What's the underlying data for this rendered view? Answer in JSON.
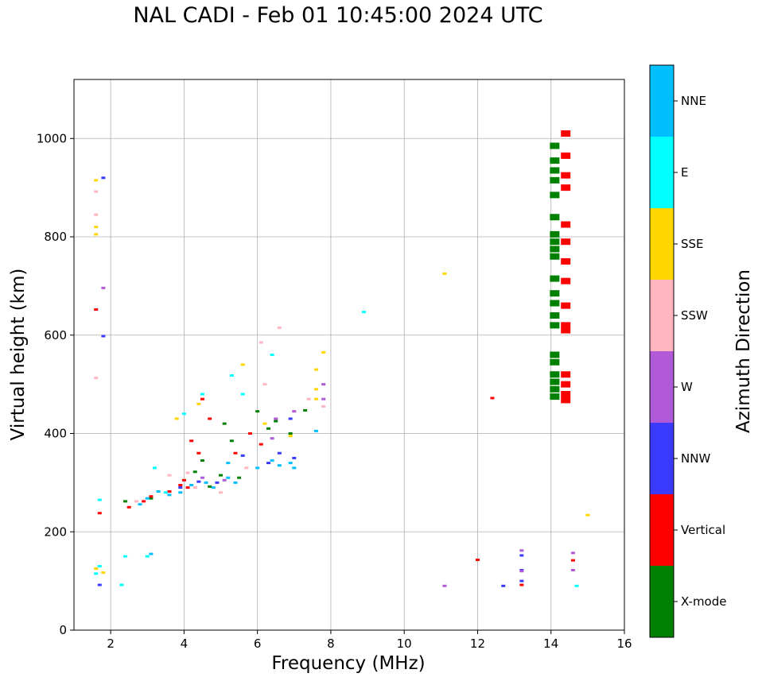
{
  "chart_data": {
    "type": "scatter",
    "title": "NAL CADI - Feb 01 10:45:00 2024 UTC",
    "xlabel": "Frequency (MHz)",
    "ylabel": "Virtual height (km)",
    "xlim": [
      1,
      16
    ],
    "ylim": [
      0,
      1120
    ],
    "xticks": [
      2,
      4,
      6,
      8,
      10,
      12,
      14,
      16
    ],
    "yticks": [
      0,
      200,
      400,
      600,
      800,
      1000
    ],
    "grid": true,
    "colorbar": {
      "label": "Azimuth Direction",
      "categories": [
        {
          "name": "X-mode",
          "color": "#008000"
        },
        {
          "name": "Vertical",
          "color": "#ff0000"
        },
        {
          "name": "NNW",
          "color": "#3a3aff"
        },
        {
          "name": "W",
          "color": "#b15ad8"
        },
        {
          "name": "SSW",
          "color": "#ffb6c1"
        },
        {
          "name": "SSE",
          "color": "#ffd700"
        },
        {
          "name": "E",
          "color": "#00ffff"
        },
        {
          "name": "NNE",
          "color": "#00bfff"
        }
      ]
    },
    "series": [
      {
        "name": "X-mode",
        "points": [
          [
            2.4,
            262
          ],
          [
            3.1,
            268
          ],
          [
            4.3,
            322
          ],
          [
            4.5,
            345
          ],
          [
            4.7,
            292
          ],
          [
            5.0,
            315
          ],
          [
            5.1,
            420
          ],
          [
            5.3,
            385
          ],
          [
            5.5,
            310
          ],
          [
            6.0,
            445
          ],
          [
            6.3,
            410
          ],
          [
            6.5,
            425
          ],
          [
            6.9,
            400
          ],
          [
            7.3,
            447
          ],
          [
            14.1,
            475
          ],
          [
            14.1,
            490
          ],
          [
            14.1,
            505
          ],
          [
            14.1,
            520
          ],
          [
            14.1,
            545
          ],
          [
            14.1,
            560
          ],
          [
            14.1,
            620
          ],
          [
            14.1,
            640
          ],
          [
            14.1,
            665
          ],
          [
            14.1,
            685
          ],
          [
            14.1,
            715
          ],
          [
            14.1,
            760
          ],
          [
            14.1,
            775
          ],
          [
            14.1,
            790
          ],
          [
            14.1,
            805
          ],
          [
            14.1,
            840
          ],
          [
            14.1,
            885
          ],
          [
            14.1,
            915
          ],
          [
            14.1,
            935
          ],
          [
            14.1,
            955
          ],
          [
            14.1,
            985
          ]
        ]
      },
      {
        "name": "Vertical",
        "points": [
          [
            1.7,
            238
          ],
          [
            1.6,
            652
          ],
          [
            2.5,
            250
          ],
          [
            2.9,
            262
          ],
          [
            3.1,
            272
          ],
          [
            3.6,
            282
          ],
          [
            3.9,
            295
          ],
          [
            4.0,
            305
          ],
          [
            4.1,
            290
          ],
          [
            4.2,
            385
          ],
          [
            4.4,
            360
          ],
          [
            4.7,
            430
          ],
          [
            4.5,
            470
          ],
          [
            5.4,
            360
          ],
          [
            5.8,
            400
          ],
          [
            6.1,
            378
          ],
          [
            12.4,
            472
          ],
          [
            12.0,
            143
          ],
          [
            13.2,
            92
          ],
          [
            14.4,
            468
          ],
          [
            14.4,
            480
          ],
          [
            14.4,
            500
          ],
          [
            14.4,
            520
          ],
          [
            14.4,
            610
          ],
          [
            14.4,
            620
          ],
          [
            14.4,
            660
          ],
          [
            14.4,
            710
          ],
          [
            14.4,
            750
          ],
          [
            14.4,
            790
          ],
          [
            14.4,
            825
          ],
          [
            14.4,
            900
          ],
          [
            14.4,
            925
          ],
          [
            14.4,
            965
          ],
          [
            14.4,
            1010
          ],
          [
            14.6,
            142
          ]
        ]
      },
      {
        "name": "NNW",
        "points": [
          [
            1.8,
            598
          ],
          [
            1.8,
            920
          ],
          [
            3.9,
            290
          ],
          [
            4.4,
            302
          ],
          [
            4.9,
            300
          ],
          [
            5.6,
            355
          ],
          [
            6.3,
            340
          ],
          [
            6.6,
            360
          ],
          [
            6.9,
            430
          ],
          [
            7.0,
            350
          ],
          [
            12.7,
            90
          ],
          [
            13.2,
            100
          ],
          [
            13.2,
            122
          ],
          [
            13.2,
            152
          ],
          [
            1.7,
            92
          ]
        ]
      },
      {
        "name": "W",
        "points": [
          [
            1.8,
            696
          ],
          [
            4.5,
            310
          ],
          [
            5.1,
            305
          ],
          [
            6.4,
            390
          ],
          [
            6.5,
            430
          ],
          [
            7.0,
            445
          ],
          [
            7.8,
            470
          ],
          [
            7.8,
            500
          ],
          [
            11.1,
            90
          ],
          [
            13.2,
            120
          ],
          [
            13.2,
            162
          ],
          [
            14.6,
            122
          ],
          [
            14.6,
            157
          ]
        ]
      },
      {
        "name": "SSW",
        "points": [
          [
            1.6,
            513
          ],
          [
            1.6,
            845
          ],
          [
            1.6,
            892
          ],
          [
            2.7,
            262
          ],
          [
            3.6,
            315
          ],
          [
            4.1,
            320
          ],
          [
            4.3,
            290
          ],
          [
            5.0,
            280
          ],
          [
            5.7,
            330
          ],
          [
            6.1,
            585
          ],
          [
            6.6,
            615
          ],
          [
            6.2,
            500
          ],
          [
            7.4,
            470
          ],
          [
            7.8,
            455
          ]
        ]
      },
      {
        "name": "SSE",
        "points": [
          [
            1.6,
            805
          ],
          [
            1.6,
            820
          ],
          [
            1.6,
            915
          ],
          [
            1.6,
            125
          ],
          [
            1.8,
            117
          ],
          [
            2.3,
            92
          ],
          [
            4.4,
            460
          ],
          [
            3.8,
            430
          ],
          [
            5.6,
            540
          ],
          [
            6.2,
            420
          ],
          [
            6.9,
            395
          ],
          [
            7.6,
            470
          ],
          [
            7.6,
            490
          ],
          [
            7.6,
            530
          ],
          [
            7.8,
            565
          ],
          [
            11.1,
            725
          ],
          [
            15.0,
            234
          ]
        ]
      },
      {
        "name": "E",
        "points": [
          [
            1.7,
            265
          ],
          [
            1.6,
            115
          ],
          [
            1.7,
            130
          ],
          [
            2.3,
            92
          ],
          [
            3.0,
            150
          ],
          [
            3.2,
            330
          ],
          [
            3.5,
            280
          ],
          [
            4.0,
            440
          ],
          [
            4.5,
            480
          ],
          [
            5.3,
            518
          ],
          [
            5.6,
            480
          ],
          [
            6.4,
            560
          ],
          [
            8.9,
            647
          ],
          [
            14.7,
            90
          ],
          [
            2.4,
            150
          ]
        ]
      },
      {
        "name": "NNE",
        "points": [
          [
            2.8,
            256
          ],
          [
            3.0,
            268
          ],
          [
            3.3,
            282
          ],
          [
            3.6,
            275
          ],
          [
            3.9,
            280
          ],
          [
            4.2,
            295
          ],
          [
            4.6,
            300
          ],
          [
            4.8,
            290
          ],
          [
            5.2,
            310
          ],
          [
            5.4,
            300
          ],
          [
            5.2,
            340
          ],
          [
            6.0,
            330
          ],
          [
            6.4,
            345
          ],
          [
            6.6,
            335
          ],
          [
            6.9,
            340
          ],
          [
            7.0,
            330
          ],
          [
            7.6,
            405
          ],
          [
            3.1,
            155
          ]
        ]
      }
    ]
  }
}
